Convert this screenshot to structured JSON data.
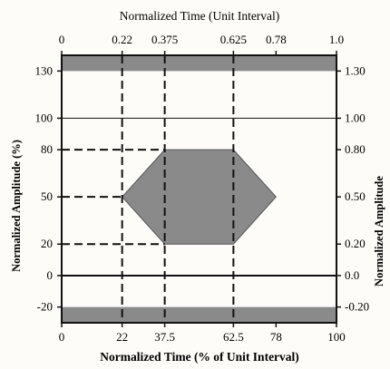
{
  "figure": {
    "top_axis_title": "Normalized Time (Unit Interval)",
    "bottom_axis_title": "Normalized Time (% of Unit Interval)",
    "left_axis_title": "Normalized Amplitude (%)",
    "right_axis_title": "Normalized Amplitude",
    "top_ticks": [
      {
        "label": "0",
        "t": 0
      },
      {
        "label": "0.22",
        "t": 22
      },
      {
        "label": "0.375",
        "t": 37.5
      },
      {
        "label": "0.625",
        "t": 62.5
      },
      {
        "label": "0.78",
        "t": 78
      },
      {
        "label": "1.0",
        "t": 100
      }
    ],
    "bottom_ticks": [
      {
        "label": "0",
        "t": 0
      },
      {
        "label": "22",
        "t": 22
      },
      {
        "label": "37.5",
        "t": 37.5
      },
      {
        "label": "62.5",
        "t": 62.5
      },
      {
        "label": "78",
        "t": 78
      },
      {
        "label": "100",
        "t": 100
      }
    ],
    "left_ticks": [
      {
        "label": "130",
        "a": 130
      },
      {
        "label": "100",
        "a": 100
      },
      {
        "label": "80",
        "a": 80
      },
      {
        "label": "50",
        "a": 50
      },
      {
        "label": "20",
        "a": 20
      },
      {
        "label": "0",
        "a": 0
      },
      {
        "label": "-20",
        "a": -20
      }
    ],
    "right_ticks": [
      {
        "label": "1.30",
        "a": 130
      },
      {
        "label": "1.00",
        "a": 100
      },
      {
        "label": "0.80",
        "a": 80
      },
      {
        "label": "0.50",
        "a": 50
      },
      {
        "label": "0.20",
        "a": 20
      },
      {
        "label": "0.0",
        "a": 0
      },
      {
        "label": "-0.20",
        "a": -20
      }
    ],
    "x_range": [
      0,
      100
    ],
    "y_range": [
      -30,
      140
    ],
    "upper_keepout": {
      "from": 130,
      "to": 140
    },
    "lower_keepout": {
      "from": -30,
      "to": -20
    },
    "eye_mask": [
      [
        22,
        50
      ],
      [
        37.5,
        80
      ],
      [
        62.5,
        80
      ],
      [
        78,
        50
      ],
      [
        62.5,
        20
      ],
      [
        37.5,
        20
      ]
    ],
    "solid_lines": [
      100,
      0
    ],
    "vertical_dashed": [
      22,
      37.5,
      62.5
    ],
    "horizontal_dashed": [
      {
        "a": 80,
        "t0": 0,
        "t1": 37.5
      },
      {
        "a": 50,
        "t0": 0,
        "t1": 22
      },
      {
        "a": 20,
        "t0": 0,
        "t1": 37.5
      }
    ],
    "colors": {
      "mask": "#8a8a8a",
      "frame": "#111111",
      "dash": "#111111"
    }
  }
}
